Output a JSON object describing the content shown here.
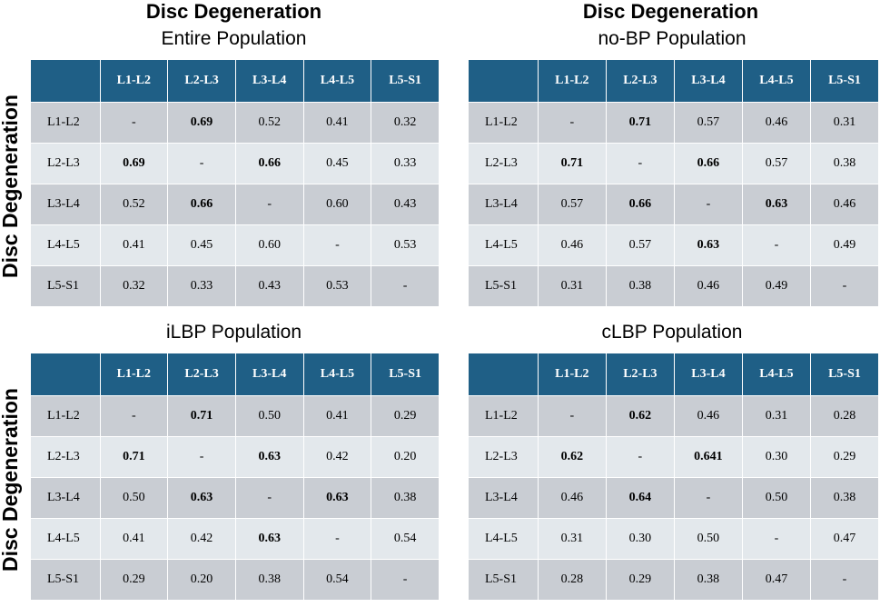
{
  "super_titles": [
    "Disc Degeneration",
    "Disc Degeneration"
  ],
  "y_axis_labels": [
    "Disc Degeneration",
    "Disc Degeneration"
  ],
  "colors": {
    "header": "#1f5f86",
    "row_dark": "#c9cdd3",
    "row_light": "#e3e8ec"
  },
  "chart_data": [
    {
      "type": "table",
      "title": "Entire Population",
      "columns": [
        "L1-L2",
        "L2-L3",
        "L3-L4",
        "L4-L5",
        "L5-S1"
      ],
      "rows": [
        {
          "label": "L1-L2",
          "values": [
            "-",
            "0.69",
            "0.52",
            "0.41",
            "0.32"
          ],
          "bold": [
            1
          ]
        },
        {
          "label": "L2-L3",
          "values": [
            "0.69",
            "-",
            "0.66",
            "0.45",
            "0.33"
          ],
          "bold": [
            0,
            2
          ]
        },
        {
          "label": "L3-L4",
          "values": [
            "0.52",
            "0.66",
            "-",
            "0.60",
            "0.43"
          ],
          "bold": [
            1
          ]
        },
        {
          "label": "L4-L5",
          "values": [
            "0.41",
            "0.45",
            "0.60",
            "-",
            "0.53"
          ],
          "bold": []
        },
        {
          "label": "L5-S1",
          "values": [
            "0.32",
            "0.33",
            "0.43",
            "0.53",
            "-"
          ],
          "bold": []
        }
      ]
    },
    {
      "type": "table",
      "title": "no-BP Population",
      "columns": [
        "L1-L2",
        "L2-L3",
        "L3-L4",
        "L4-L5",
        "L5-S1"
      ],
      "rows": [
        {
          "label": "L1-L2",
          "values": [
            "-",
            "0.71",
            "0.57",
            "0.46",
            "0.31"
          ],
          "bold": [
            1
          ]
        },
        {
          "label": "L2-L3",
          "values": [
            "0.71",
            "-",
            "0.66",
            "0.57",
            "0.38"
          ],
          "bold": [
            0,
            2
          ]
        },
        {
          "label": "L3-L4",
          "values": [
            "0.57",
            "0.66",
            "-",
            "0.63",
            "0.46"
          ],
          "bold": [
            1,
            3
          ]
        },
        {
          "label": "L4-L5",
          "values": [
            "0.46",
            "0.57",
            "0.63",
            "-",
            "0.49"
          ],
          "bold": [
            2
          ]
        },
        {
          "label": "L5-S1",
          "values": [
            "0.31",
            "0.38",
            "0.46",
            "0.49",
            "-"
          ],
          "bold": []
        }
      ]
    },
    {
      "type": "table",
      "title": "iLBP Population",
      "columns": [
        "L1-L2",
        "L2-L3",
        "L3-L4",
        "L4-L5",
        "L5-S1"
      ],
      "rows": [
        {
          "label": "L1-L2",
          "values": [
            "-",
            "0.71",
            "0.50",
            "0.41",
            "0.29"
          ],
          "bold": [
            1
          ]
        },
        {
          "label": "L2-L3",
          "values": [
            "0.71",
            "-",
            "0.63",
            "0.42",
            "0.20"
          ],
          "bold": [
            0,
            2
          ]
        },
        {
          "label": "L3-L4",
          "values": [
            "0.50",
            "0.63",
            "-",
            "0.63",
            "0.38"
          ],
          "bold": [
            1,
            3
          ]
        },
        {
          "label": "L4-L5",
          "values": [
            "0.41",
            "0.42",
            "0.63",
            "-",
            "0.54"
          ],
          "bold": [
            2
          ]
        },
        {
          "label": "L5-S1",
          "values": [
            "0.29",
            "0.20",
            "0.38",
            "0.54",
            "-"
          ],
          "bold": []
        }
      ]
    },
    {
      "type": "table",
      "title": "cLBP Population",
      "columns": [
        "L1-L2",
        "L2-L3",
        "L3-L4",
        "L4-L5",
        "L5-S1"
      ],
      "rows": [
        {
          "label": "L1-L2",
          "values": [
            "-",
            "0.62",
            "0.46",
            "0.31",
            "0.28"
          ],
          "bold": [
            1
          ]
        },
        {
          "label": "L2-L3",
          "values": [
            "0.62",
            "-",
            "0.641",
            "0.30",
            "0.29"
          ],
          "bold": [
            0,
            2
          ]
        },
        {
          "label": "L3-L4",
          "values": [
            "0.46",
            "0.64",
            "-",
            "0.50",
            "0.38"
          ],
          "bold": [
            1
          ]
        },
        {
          "label": "L4-L5",
          "values": [
            "0.31",
            "0.30",
            "0.50",
            "-",
            "0.47"
          ],
          "bold": []
        },
        {
          "label": "L5-S1",
          "values": [
            "0.28",
            "0.29",
            "0.38",
            "0.47",
            "-"
          ],
          "bold": []
        }
      ]
    }
  ]
}
